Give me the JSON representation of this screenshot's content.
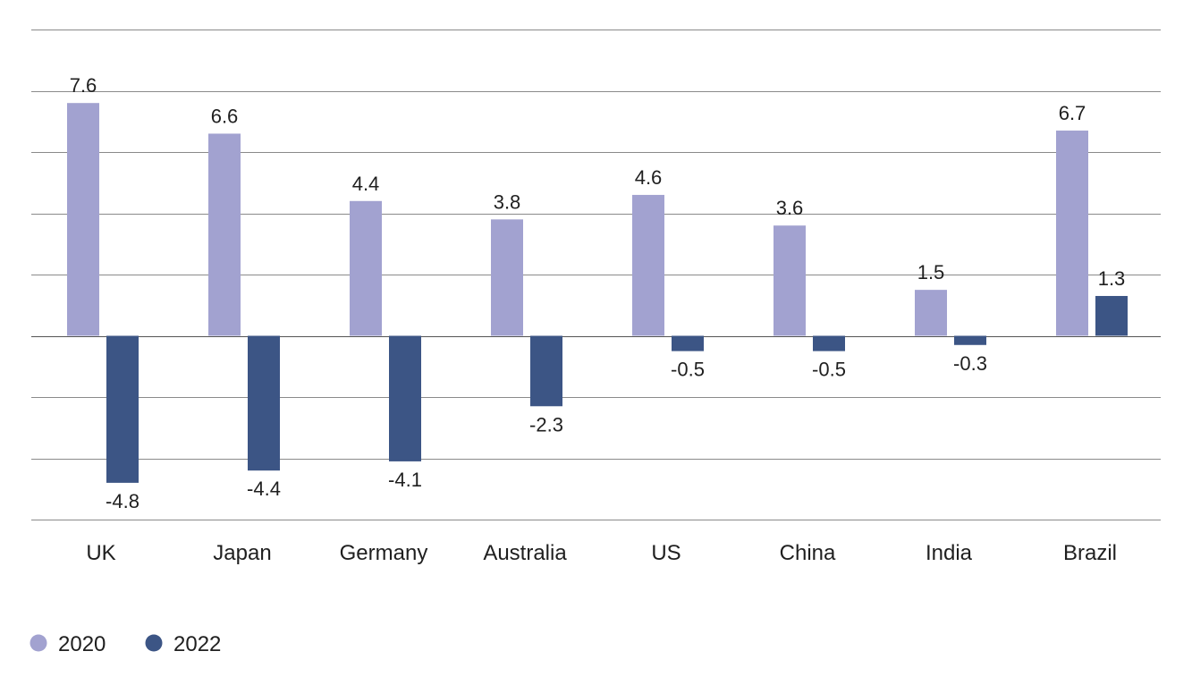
{
  "chart_data": {
    "type": "bar",
    "title": "",
    "xlabel": "",
    "ylabel": "",
    "categories": [
      "UK",
      "Japan",
      "Germany",
      "Australia",
      "US",
      "China",
      "India",
      "Brazil"
    ],
    "series": [
      {
        "name": "2020",
        "color": "#a2a2d0",
        "values": [
          7.6,
          6.6,
          4.4,
          3.8,
          4.6,
          3.6,
          1.5,
          6.7
        ],
        "labels": [
          "7.6",
          "6.6",
          "4.4",
          "3.8",
          "4.6",
          "3.6",
          "1.5",
          "6.7"
        ]
      },
      {
        "name": "2022",
        "color": "#3c5585",
        "values": [
          -4.8,
          -4.4,
          -4.1,
          -2.3,
          -0.5,
          -0.5,
          -0.3,
          1.3
        ],
        "labels": [
          "-4.8",
          "-4.4",
          "-4.1",
          "-2.3",
          "-0.5",
          "-0.5",
          "-0.3",
          "1.3"
        ]
      }
    ],
    "ylim": [
      -6,
      10
    ],
    "gridline_step": 2,
    "grid": true,
    "y_tick_labels_shown": false,
    "legend_position": "bottom-left"
  }
}
